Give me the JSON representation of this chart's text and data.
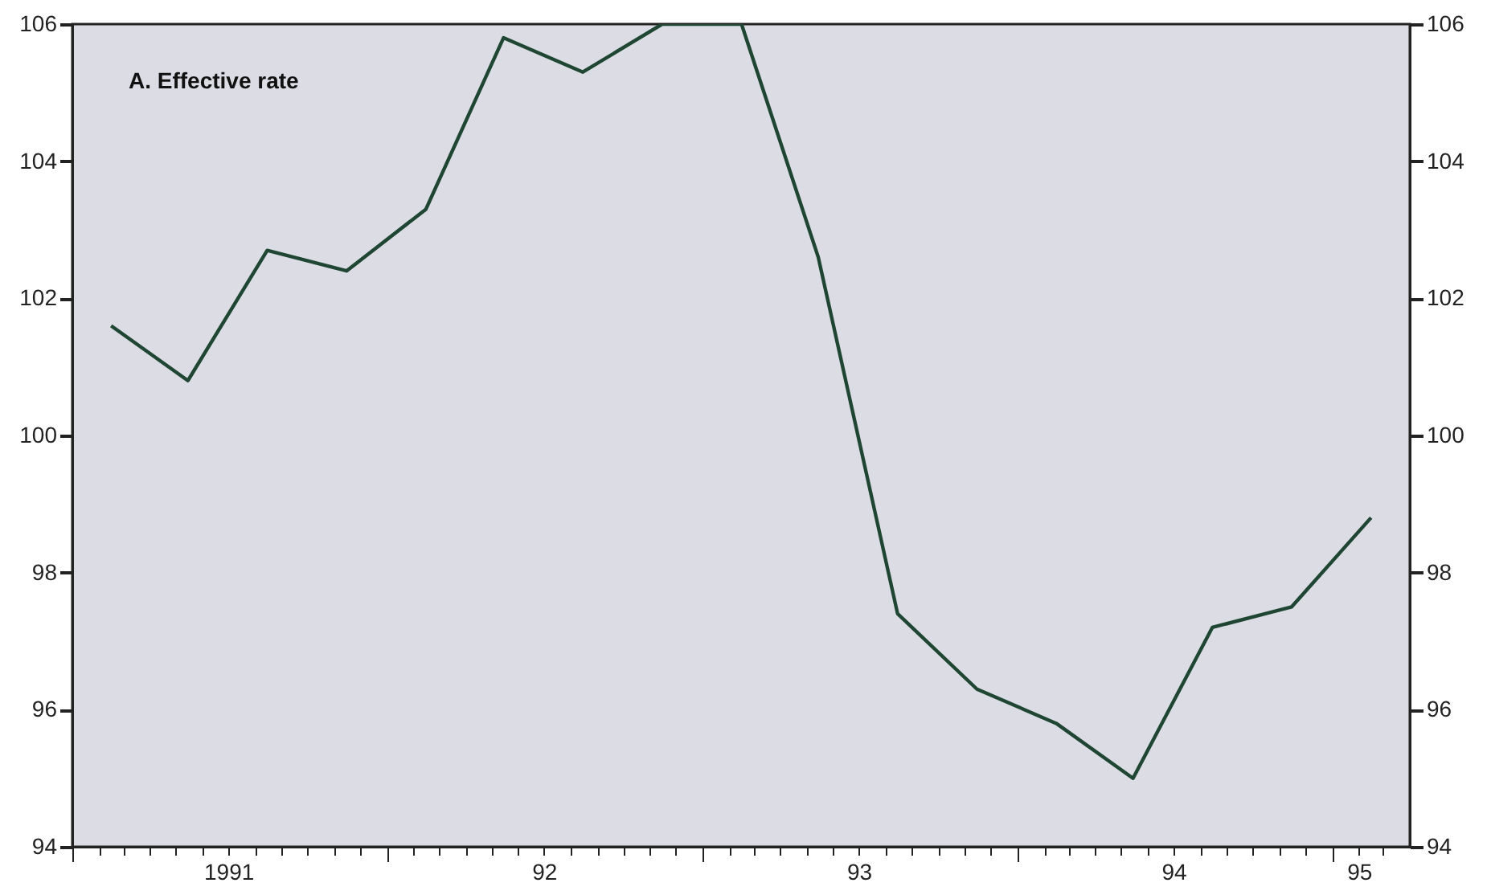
{
  "chart_data": {
    "type": "line",
    "title": "A.  Effective rate",
    "x": [
      "1991-02-15",
      "1991-05-15",
      "1991-08-15",
      "1991-11-15",
      "1992-02-15",
      "1992-05-15",
      "1992-08-15",
      "1992-11-15",
      "1993-02-15",
      "1993-05-15",
      "1993-08-15",
      "1993-11-15",
      "1994-02-15",
      "1994-05-15",
      "1994-08-15",
      "1994-11-15",
      "1995-02-15"
    ],
    "series": [
      {
        "color": "#1e4632",
        "values": [
          101.6,
          100.8,
          102.7,
          102.4,
          103.3,
          105.8,
          105.3,
          106.0,
          106.0,
          102.6,
          97.4,
          96.3,
          95.8,
          95.0,
          97.2,
          97.5,
          98.8
        ]
      }
    ],
    "line_style": "solid",
    "xlim": [
      "1991-01",
      "1995-04"
    ],
    "xticks": [
      {
        "value": "1991-01",
        "label": null
      },
      {
        "value": "1991-02",
        "label": null
      },
      {
        "value": "1991-03",
        "label": null
      },
      {
        "value": "1991-04",
        "label": null
      },
      {
        "value": "1991-05",
        "label": null
      },
      {
        "value": "1991-06",
        "label": null
      },
      {
        "value": "1991-07",
        "label": "1991"
      },
      {
        "value": "1991-08",
        "label": null
      },
      {
        "value": "1991-09",
        "label": null
      },
      {
        "value": "1991-10",
        "label": null
      },
      {
        "value": "1991-11",
        "label": null
      },
      {
        "value": "1991-12",
        "label": null
      },
      {
        "value": "1992-01",
        "label": null
      },
      {
        "value": "1992-02",
        "label": null
      },
      {
        "value": "1992-03",
        "label": null
      },
      {
        "value": "1992-04",
        "label": null
      },
      {
        "value": "1992-05",
        "label": null
      },
      {
        "value": "1992-06",
        "label": null
      },
      {
        "value": "1992-07",
        "label": "92"
      },
      {
        "value": "1992-08",
        "label": null
      },
      {
        "value": "1992-09",
        "label": null
      },
      {
        "value": "1992-10",
        "label": null
      },
      {
        "value": "1992-11",
        "label": null
      },
      {
        "value": "1992-12",
        "label": null
      },
      {
        "value": "1993-01",
        "label": null
      },
      {
        "value": "1993-02",
        "label": null
      },
      {
        "value": "1993-03",
        "label": null
      },
      {
        "value": "1993-04",
        "label": null
      },
      {
        "value": "1993-05",
        "label": null
      },
      {
        "value": "1993-06",
        "label": null
      },
      {
        "value": "1993-07",
        "label": "93"
      },
      {
        "value": "1993-08",
        "label": null
      },
      {
        "value": "1993-09",
        "label": null
      },
      {
        "value": "1993-10",
        "label": null
      },
      {
        "value": "1993-11",
        "label": null
      },
      {
        "value": "1993-12",
        "label": null
      },
      {
        "value": "1994-01",
        "label": null
      },
      {
        "value": "1994-02",
        "label": null
      },
      {
        "value": "1994-03",
        "label": null
      },
      {
        "value": "1994-04",
        "label": null
      },
      {
        "value": "1994-05",
        "label": null
      },
      {
        "value": "1994-06",
        "label": null
      },
      {
        "value": "1994-07",
        "label": "94"
      },
      {
        "value": "1994-08",
        "label": null
      },
      {
        "value": "1994-09",
        "label": null
      },
      {
        "value": "1994-10",
        "label": null
      },
      {
        "value": "1994-11",
        "label": null
      },
      {
        "value": "1994-12",
        "label": null
      },
      {
        "value": "1995-01",
        "label": null
      },
      {
        "value": "1995-02",
        "label": "95"
      },
      {
        "value": "1995-03",
        "label": null
      }
    ],
    "ylim": [
      94,
      106
    ],
    "yticks": [
      94,
      96,
      98,
      100,
      102,
      104,
      106
    ],
    "y2lim": [
      94,
      106
    ],
    "y2ticks": [
      94,
      96,
      98,
      100,
      102,
      104,
      106
    ]
  }
}
